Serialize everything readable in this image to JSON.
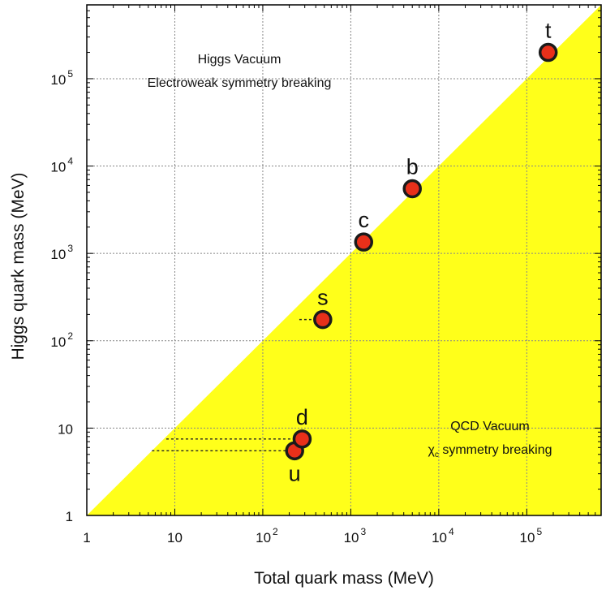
{
  "chart_data": {
    "type": "scatter",
    "title": "",
    "xlabel": "Total quark mass (MeV)",
    "ylabel": "Higgs quark mass (MeV)",
    "x_scale": "log",
    "y_scale": "log",
    "xlim": [
      1,
      700000
    ],
    "ylim": [
      1,
      700000
    ],
    "grid": true,
    "legend": "none",
    "x_ticks": [
      {
        "value": 1,
        "base": "1",
        "exp": ""
      },
      {
        "value": 10,
        "base": "10",
        "exp": ""
      },
      {
        "value": 100,
        "base": "10",
        "exp": "2"
      },
      {
        "value": 1000,
        "base": "10",
        "exp": "3"
      },
      {
        "value": 10000,
        "base": "10",
        "exp": "4"
      },
      {
        "value": 100000,
        "base": "10",
        "exp": "5"
      }
    ],
    "y_ticks": [
      {
        "value": 1,
        "base": "1",
        "exp": ""
      },
      {
        "value": 10,
        "base": "10",
        "exp": ""
      },
      {
        "value": 100,
        "base": "10",
        "exp": "2"
      },
      {
        "value": 1000,
        "base": "10",
        "exp": "3"
      },
      {
        "value": 10000,
        "base": "10",
        "exp": "4"
      },
      {
        "value": 100000,
        "base": "10",
        "exp": "5"
      }
    ],
    "points": [
      {
        "label": "u",
        "x": 230,
        "y": 5.5,
        "label_pos": "below"
      },
      {
        "label": "d",
        "x": 280,
        "y": 7.5,
        "label_pos": "above"
      },
      {
        "label": "s",
        "x": 480,
        "y": 175,
        "label_pos": "above"
      },
      {
        "label": "c",
        "x": 1400,
        "y": 1350,
        "label_pos": "above"
      },
      {
        "label": "b",
        "x": 5000,
        "y": 5500,
        "label_pos": "above"
      },
      {
        "label": "t",
        "x": 175000,
        "y": 200000,
        "label_pos": "above"
      }
    ],
    "dotted_leaders": [
      {
        "for": "u",
        "x_from": 5.5,
        "y": 5.5
      },
      {
        "for": "d",
        "x_from": 8,
        "y": 7.5
      },
      {
        "for": "s",
        "x_from": 260,
        "y": 175
      }
    ],
    "regions": [
      {
        "name": "Higgs Vacuum",
        "lines": [
          "Higgs Vacuum",
          "Electroweak symmetry breaking"
        ],
        "fill": "#ffffff"
      },
      {
        "name": "QCD Vacuum",
        "lines": [
          "QCD Vacuum",
          "symmetry breaking"
        ],
        "prefix_symbol": "χ",
        "prefix_sub": "c",
        "fill": "#ffff1a"
      }
    ],
    "colors": {
      "region_fill": "#ffff1a",
      "point_fill": "#e8301a",
      "point_stroke": "#1a1a1a",
      "grid": "#888888",
      "axis": "#000000"
    }
  }
}
